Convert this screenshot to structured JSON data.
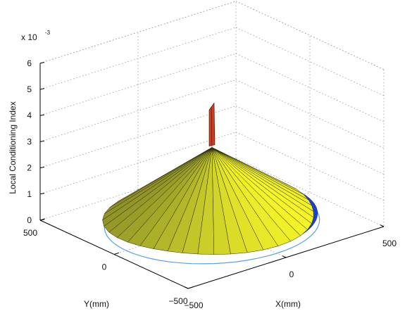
{
  "chart_data": {
    "type": "surface3d",
    "title": "",
    "xlabel": "X(mm)",
    "ylabel": "Y(mm)",
    "zlabel": "Local Conditioning Index",
    "z_exponent": {
      "base": "x 10",
      "power": "-3"
    },
    "xlim": [
      -500,
      500
    ],
    "ylim": [
      -500,
      500
    ],
    "zlim": [
      0,
      6
    ],
    "x_ticks": [
      "-500",
      "0",
      "500"
    ],
    "y_ticks": [
      "500",
      "0",
      "-500"
    ],
    "z_ticks": [
      "0",
      "1",
      "2",
      "3",
      "4",
      "5",
      "6"
    ],
    "grid": true,
    "surface": {
      "description_values": {
        "peak_z_e3": 4.6,
        "cone_apex_z_e3": 2.9,
        "rim_z_e3": 0.3,
        "base_disk_z_e3": 0.0,
        "rim_radius_mm": 430
      }
    },
    "colors": {
      "surface_yellow": "#f3f12a",
      "surface_green": "#c9d81b",
      "base_blue": "#1f3fd6",
      "contour_blue": "#5aa0e6",
      "spike_red": "#d23a1a"
    }
  }
}
